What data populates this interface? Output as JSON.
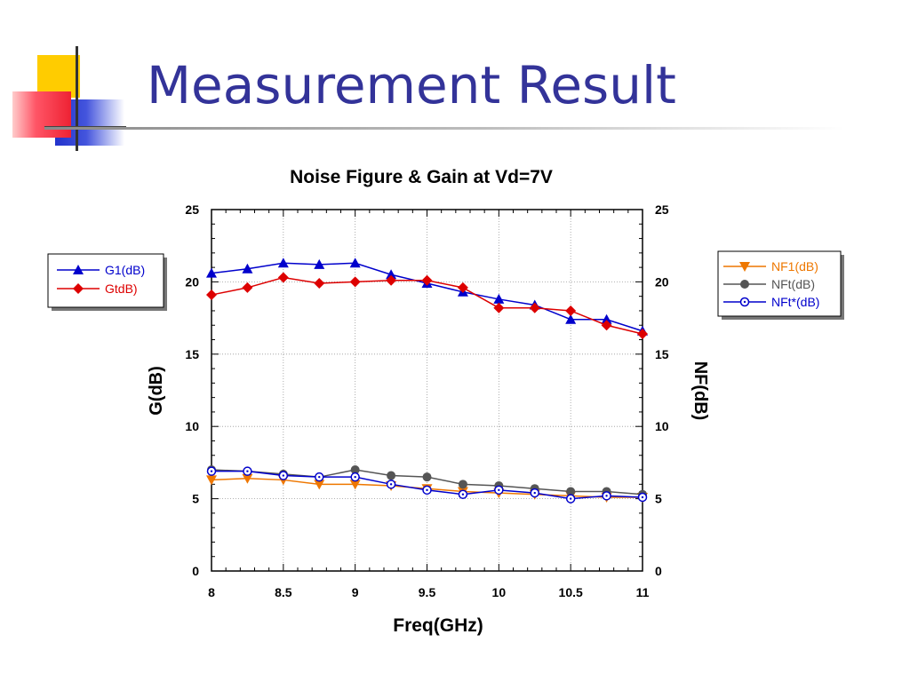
{
  "slide": {
    "title": "Measurement Result"
  },
  "colors": {
    "title": "#333399",
    "G1": "#0000cc",
    "Gt": "#dd0000",
    "NF1": "#ee7700",
    "NFt": "#555555",
    "NFt_star": "#0000cc"
  },
  "chart_data": {
    "type": "line",
    "title": "Noise Figure & Gain at Vd=7V",
    "xlabel": "Freq(GHz)",
    "ylabel_left": "G(dB)",
    "ylabel_right": "NF(dB)",
    "xlim": [
      8,
      11
    ],
    "ylim": [
      0,
      25
    ],
    "x_ticks": [
      "8",
      "8.5",
      "9",
      "9.5",
      "10",
      "10.5",
      "11"
    ],
    "y_ticks": [
      "0",
      "5",
      "10",
      "15",
      "20",
      "25"
    ],
    "x": [
      8,
      8.25,
      8.5,
      8.75,
      9,
      9.25,
      9.5,
      9.75,
      10,
      10.25,
      10.5,
      10.75,
      11
    ],
    "grid": true,
    "legend_left": [
      "G1(dB)",
      "GtdB)"
    ],
    "legend_right": [
      "NF1(dB)",
      "NFt(dB)",
      "NFt*(dB)"
    ],
    "series": [
      {
        "name": "G1(dB)",
        "marker": "triangle-up",
        "color": "#0000cc",
        "values": [
          20.6,
          20.9,
          21.3,
          21.2,
          21.3,
          20.5,
          19.9,
          19.3,
          18.8,
          18.4,
          17.4,
          17.4,
          16.6
        ]
      },
      {
        "name": "GtdB)",
        "marker": "diamond",
        "color": "#dd0000",
        "values": [
          19.1,
          19.6,
          20.3,
          19.9,
          20.0,
          20.1,
          20.1,
          19.6,
          18.2,
          18.2,
          18.0,
          17.0,
          16.4
        ]
      },
      {
        "name": "NF1(dB)",
        "marker": "triangle-down",
        "color": "#ee7700",
        "values": [
          6.3,
          6.4,
          6.3,
          6.0,
          6.0,
          5.9,
          5.7,
          5.5,
          5.4,
          5.3,
          5.2,
          5.1,
          5.1
        ]
      },
      {
        "name": "NFt(dB)",
        "marker": "circle",
        "color": "#555555",
        "values": [
          7.0,
          6.9,
          6.7,
          6.5,
          7.0,
          6.6,
          6.5,
          6.0,
          5.9,
          5.7,
          5.5,
          5.5,
          5.3
        ]
      },
      {
        "name": "NFt*(dB)",
        "marker": "open-circle",
        "color": "#0000cc",
        "values": [
          6.9,
          6.9,
          6.6,
          6.5,
          6.5,
          6.0,
          5.6,
          5.3,
          5.6,
          5.4,
          5.0,
          5.2,
          5.1
        ]
      }
    ]
  }
}
